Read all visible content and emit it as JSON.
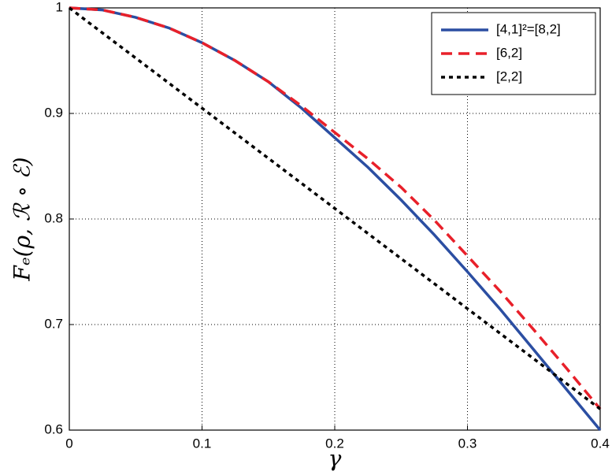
{
  "chart_data": {
    "type": "line",
    "xlabel": "γ",
    "ylabel": "Fₑ(ρ, ℛ ∘ ℰ)",
    "x": [
      0,
      0.025,
      0.05,
      0.075,
      0.1,
      0.125,
      0.15,
      0.175,
      0.2,
      0.225,
      0.25,
      0.275,
      0.3,
      0.325,
      0.35,
      0.375,
      0.4
    ],
    "series": [
      {
        "name": "[4,1]²=[8,2]",
        "color": "#2b4ea2",
        "dash": "solid",
        "values": [
          1,
          0.998,
          0.991,
          0.981,
          0.967,
          0.95,
          0.93,
          0.905,
          0.877,
          0.849,
          0.818,
          0.785,
          0.75,
          0.714,
          0.676,
          0.638,
          0.6
        ]
      },
      {
        "name": "[6,2]",
        "color": "#e8202a",
        "dash": "dashed",
        "values": [
          1,
          0.998,
          0.991,
          0.981,
          0.967,
          0.95,
          0.93,
          0.907,
          0.882,
          0.857,
          0.83,
          0.799,
          0.765,
          0.731,
          0.695,
          0.658,
          0.62
        ]
      },
      {
        "name": "[2,2]",
        "color": "#000000",
        "dash": "dotted",
        "values": [
          1,
          0.97625,
          0.9525,
          0.92875,
          0.905,
          0.88125,
          0.8575,
          0.83375,
          0.81,
          0.78625,
          0.7625,
          0.73875,
          0.715,
          0.69125,
          0.6675,
          0.64375,
          0.62
        ]
      }
    ],
    "xlim": [
      0,
      0.4
    ],
    "xticks": [
      0,
      0.1,
      0.2,
      0.3,
      0.4
    ],
    "ylim": [
      0.6,
      1
    ],
    "yticks": [
      0.6,
      0.7,
      0.8,
      0.9,
      1
    ],
    "grid": true,
    "legend": "upper-right"
  }
}
